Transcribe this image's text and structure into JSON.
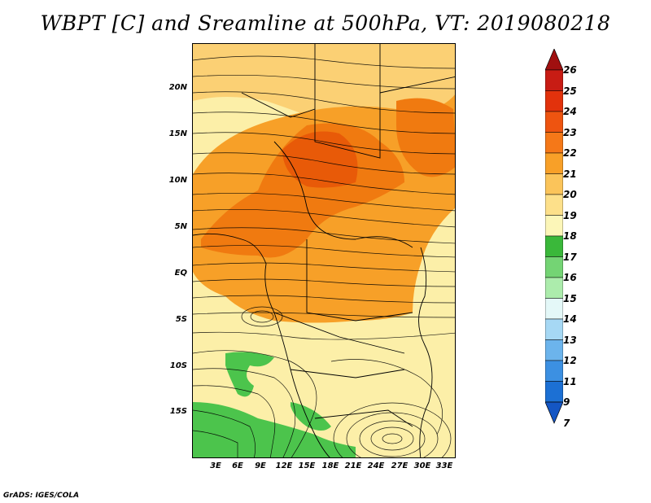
{
  "title": "WBPT [C] and Sreamline at 500hPa, VT: 2019080218",
  "credit": "GrADS: IGES/COLA",
  "map": {
    "lat_labels": [
      "20N",
      "15N",
      "10N",
      "5N",
      "EQ",
      "5S",
      "10S",
      "15S"
    ],
    "lon_labels": [
      "3E",
      "6E",
      "9E",
      "12E",
      "15E",
      "18E",
      "21E",
      "24E",
      "27E",
      "30E",
      "33E"
    ],
    "shading_colors": {
      "max": "#e85a08",
      "high": "#f07a10",
      "mid": "#f7a028",
      "low": "#fbd074",
      "pale": "#fcefa8",
      "green": "#4cc44c"
    }
  },
  "colorbar": {
    "labels": [
      "26",
      "25",
      "24",
      "23",
      "22",
      "21",
      "20",
      "19",
      "18",
      "17",
      "16",
      "15",
      "14",
      "13",
      "12",
      "11",
      "9",
      "7"
    ],
    "colors": [
      "#a01010",
      "#c81c14",
      "#e2320c",
      "#ee5410",
      "#f57818",
      "#f8a028",
      "#fbc45a",
      "#fde08a",
      "#fcf6b8",
      "#3ab83a",
      "#74d474",
      "#acecac",
      "#e4f8f8",
      "#a6d8f4",
      "#6cb4ec",
      "#3c90e2",
      "#1c70d4",
      "#1456c4"
    ]
  }
}
